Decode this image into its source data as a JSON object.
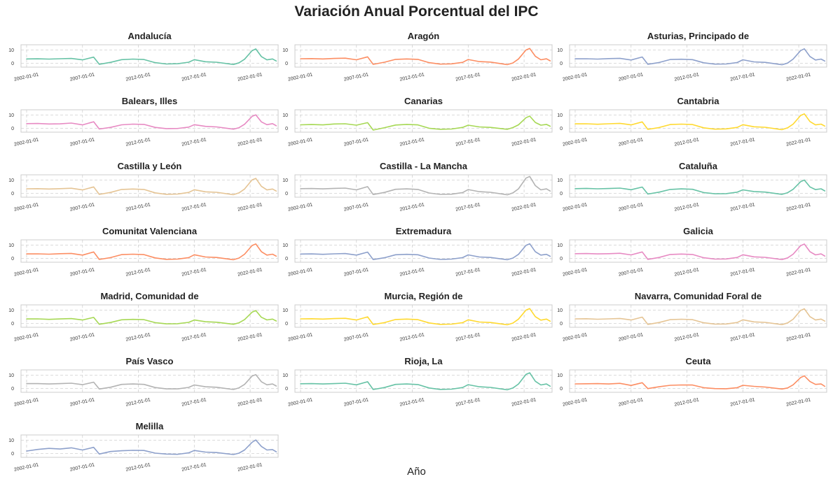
{
  "title": "Variación Anual Porcentual del IPC",
  "chart_data": {
    "type": "line",
    "title": "Variación Anual Porcentual del IPC",
    "xlabel": "Año",
    "ylabel": "",
    "x_ticks": [
      "2002-01-01",
      "2007-01-01",
      "2012-01-01",
      "2017-01-01",
      "2022-01-01"
    ],
    "y_ticks": [
      0,
      10
    ],
    "ylim": [
      -3,
      14
    ],
    "xlim": [
      "2001-07-01",
      "2024-07-01"
    ],
    "grid": true,
    "x_sample_dates": [
      "2002-01",
      "2003-01",
      "2004-01",
      "2005-01",
      "2006-01",
      "2007-01",
      "2008-01",
      "2008-07",
      "2009-07",
      "2010-07",
      "2011-07",
      "2012-07",
      "2013-07",
      "2014-07",
      "2015-07",
      "2016-07",
      "2017-01",
      "2018-01",
      "2019-01",
      "2020-07",
      "2021-01",
      "2021-07",
      "2022-03",
      "2022-07",
      "2023-01",
      "2023-07",
      "2024-01",
      "2024-05"
    ],
    "subplots": [
      {
        "name": "Andalucía",
        "color": "#66c2a5",
        "values": [
          3.2,
          3.3,
          3.1,
          3.4,
          3.6,
          2.5,
          4.6,
          -0.8,
          0.6,
          2.7,
          3.1,
          2.8,
          0.4,
          -0.6,
          -0.4,
          0.7,
          2.7,
          1.1,
          0.7,
          -1.0,
          0.3,
          3.0,
          9.5,
          10.8,
          5.0,
          2.5,
          3.2,
          1.7
        ]
      },
      {
        "name": "Aragón",
        "color": "#fc8d62",
        "values": [
          3.4,
          3.5,
          3.2,
          3.6,
          3.8,
          2.6,
          4.8,
          -0.9,
          0.7,
          2.9,
          3.2,
          2.9,
          0.4,
          -0.7,
          -0.5,
          0.6,
          2.8,
          1.2,
          0.8,
          -1.1,
          0.2,
          3.2,
          10.0,
          11.2,
          5.3,
          2.6,
          3.3,
          1.8
        ]
      },
      {
        "name": "Asturias, Principado de",
        "color": "#8da0cb",
        "values": [
          3.3,
          3.4,
          3.1,
          3.5,
          3.7,
          2.4,
          4.7,
          -0.8,
          0.5,
          2.8,
          3.0,
          2.7,
          0.3,
          -0.7,
          -0.6,
          0.5,
          2.6,
          1.0,
          0.6,
          -1.2,
          0.1,
          3.1,
          9.6,
          10.9,
          5.1,
          2.4,
          3.1,
          1.6
        ]
      },
      {
        "name": "Balears, Illes",
        "color": "#e78ac3",
        "values": [
          3.5,
          3.6,
          3.2,
          3.3,
          3.9,
          2.5,
          4.9,
          -0.6,
          0.6,
          2.6,
          3.1,
          2.9,
          0.6,
          -0.3,
          -0.2,
          0.8,
          2.7,
          1.4,
          1.0,
          -0.7,
          0.4,
          3.0,
          9.0,
          10.2,
          4.8,
          2.7,
          3.5,
          1.9
        ]
      },
      {
        "name": "Canarias",
        "color": "#a6d854",
        "values": [
          2.6,
          2.8,
          2.5,
          3.2,
          3.4,
          2.3,
          4.2,
          -1.4,
          0.4,
          2.4,
          2.9,
          2.5,
          0.0,
          -0.8,
          -0.6,
          0.6,
          2.3,
          1.0,
          0.6,
          -0.8,
          0.5,
          2.6,
          8.0,
          9.2,
          4.4,
          2.3,
          2.9,
          1.5
        ]
      },
      {
        "name": "Cantabria",
        "color": "#ffd92f",
        "values": [
          3.3,
          3.4,
          3.0,
          3.4,
          3.7,
          2.5,
          4.8,
          -0.9,
          0.5,
          2.8,
          3.1,
          2.8,
          0.3,
          -0.7,
          -0.5,
          0.6,
          2.7,
          1.1,
          0.7,
          -1.1,
          0.3,
          3.1,
          9.7,
          10.9,
          5.1,
          2.5,
          3.1,
          1.6
        ]
      },
      {
        "name": "Castilla y León",
        "color": "#e5c494",
        "values": [
          3.4,
          3.5,
          3.2,
          3.5,
          3.8,
          2.5,
          4.8,
          -0.9,
          0.6,
          2.9,
          3.2,
          2.9,
          0.3,
          -0.8,
          -0.6,
          0.6,
          2.7,
          1.1,
          0.7,
          -1.1,
          0.3,
          3.2,
          10.1,
          11.3,
          5.3,
          2.5,
          3.2,
          1.7
        ]
      },
      {
        "name": "Castilla - La Mancha",
        "color": "#b3b3b3",
        "values": [
          3.5,
          3.6,
          3.3,
          3.7,
          3.9,
          2.6,
          5.0,
          -1.0,
          0.6,
          3.0,
          3.3,
          2.9,
          0.2,
          -0.9,
          -0.7,
          0.5,
          2.8,
          1.2,
          0.7,
          -1.2,
          0.3,
          3.4,
          11.5,
          12.8,
          5.8,
          2.6,
          3.3,
          1.7
        ]
      },
      {
        "name": "Cataluña",
        "color": "#66c2a5",
        "values": [
          3.5,
          3.7,
          3.4,
          3.6,
          3.9,
          2.7,
          4.7,
          -0.6,
          0.8,
          2.9,
          3.3,
          3.0,
          0.5,
          -0.4,
          -0.3,
          0.8,
          2.6,
          1.3,
          0.9,
          -0.8,
          0.4,
          3.0,
          8.8,
          10.0,
          4.8,
          2.8,
          3.4,
          1.8
        ]
      },
      {
        "name": "Comunitat Valenciana",
        "color": "#fc8d62",
        "values": [
          3.3,
          3.4,
          3.1,
          3.5,
          3.7,
          2.4,
          4.8,
          -0.9,
          0.5,
          2.8,
          3.1,
          2.8,
          0.3,
          -0.8,
          -0.6,
          0.5,
          2.7,
          1.0,
          0.6,
          -1.1,
          0.2,
          3.1,
          9.7,
          10.9,
          5.0,
          2.4,
          3.1,
          1.6
        ]
      },
      {
        "name": "Extremadura",
        "color": "#8da0cb",
        "values": [
          3.2,
          3.3,
          3.0,
          3.4,
          3.6,
          2.4,
          4.7,
          -1.0,
          0.4,
          2.7,
          3.0,
          2.7,
          0.2,
          -0.9,
          -0.6,
          0.5,
          2.6,
          1.0,
          0.6,
          -1.1,
          0.2,
          3.0,
          9.8,
          11.0,
          5.0,
          2.4,
          3.0,
          1.5
        ]
      },
      {
        "name": "Galicia",
        "color": "#e78ac3",
        "values": [
          3.5,
          3.6,
          3.3,
          3.5,
          3.8,
          2.6,
          4.8,
          -0.8,
          0.6,
          2.9,
          3.2,
          2.9,
          0.4,
          -0.6,
          -0.5,
          0.6,
          2.7,
          1.1,
          0.7,
          -1.0,
          0.3,
          3.1,
          9.6,
          10.8,
          5.0,
          2.6,
          3.3,
          1.7
        ]
      },
      {
        "name": "Madrid, Comunidad de",
        "color": "#a6d854",
        "values": [
          3.3,
          3.4,
          3.0,
          3.3,
          3.6,
          2.5,
          4.5,
          -0.7,
          0.6,
          2.7,
          3.0,
          2.8,
          0.5,
          -0.4,
          -0.3,
          0.7,
          2.5,
          1.2,
          0.8,
          -0.7,
          0.4,
          2.8,
          8.5,
          9.7,
          4.6,
          2.6,
          3.2,
          1.8
        ]
      },
      {
        "name": "Murcia, Región de",
        "color": "#ffd92f",
        "values": [
          3.4,
          3.5,
          3.2,
          3.6,
          3.8,
          2.5,
          4.9,
          -0.9,
          0.5,
          2.9,
          3.2,
          2.8,
          0.3,
          -0.8,
          -0.6,
          0.5,
          2.7,
          1.0,
          0.6,
          -1.1,
          0.2,
          3.2,
          10.0,
          11.2,
          5.1,
          2.4,
          3.2,
          1.6
        ]
      },
      {
        "name": "Navarra, Comunidad Foral de",
        "color": "#e5c494",
        "values": [
          3.4,
          3.5,
          3.1,
          3.4,
          3.7,
          2.5,
          4.7,
          -0.8,
          0.6,
          2.8,
          3.1,
          2.8,
          0.4,
          -0.6,
          -0.5,
          0.6,
          2.7,
          1.1,
          0.7,
          -1.0,
          0.3,
          3.1,
          9.8,
          11.0,
          5.1,
          2.5,
          3.2,
          1.7
        ]
      },
      {
        "name": "País Vasco",
        "color": "#b3b3b3",
        "values": [
          3.6,
          3.6,
          3.3,
          3.6,
          3.9,
          2.8,
          4.7,
          -0.5,
          0.8,
          3.0,
          3.3,
          3.0,
          0.6,
          -0.4,
          -0.4,
          0.7,
          2.6,
          1.2,
          0.8,
          -0.9,
          0.4,
          3.0,
          9.3,
          10.4,
          5.0,
          2.7,
          3.3,
          1.8
        ]
      },
      {
        "name": "Rioja, La",
        "color": "#66c2a5",
        "values": [
          3.5,
          3.6,
          3.3,
          3.6,
          3.9,
          2.7,
          5.0,
          -0.9,
          0.6,
          3.0,
          3.3,
          2.9,
          0.3,
          -0.8,
          -0.6,
          0.6,
          2.8,
          1.2,
          0.7,
          -1.1,
          0.3,
          3.3,
          10.6,
          11.8,
          5.4,
          2.6,
          3.3,
          1.6
        ]
      },
      {
        "name": "Ceuta",
        "color": "#fc8d62",
        "values": [
          3.4,
          3.5,
          3.6,
          3.3,
          3.8,
          2.2,
          4.3,
          -0.2,
          1.2,
          2.3,
          2.6,
          2.5,
          0.5,
          -0.2,
          -0.3,
          0.5,
          2.3,
          1.5,
          1.0,
          -0.5,
          0.3,
          2.7,
          8.2,
          9.5,
          5.2,
          3.0,
          3.3,
          1.5
        ]
      },
      {
        "name": "Melilla",
        "color": "#8da0cb",
        "values": [
          1.8,
          3.0,
          3.8,
          3.3,
          4.2,
          2.6,
          4.6,
          -0.5,
          1.4,
          2.0,
          2.3,
          2.2,
          0.2,
          -0.5,
          -0.7,
          0.4,
          2.2,
          1.0,
          0.6,
          -0.9,
          0.2,
          2.6,
          8.4,
          10.2,
          5.3,
          2.6,
          2.9,
          1.2
        ]
      }
    ]
  }
}
